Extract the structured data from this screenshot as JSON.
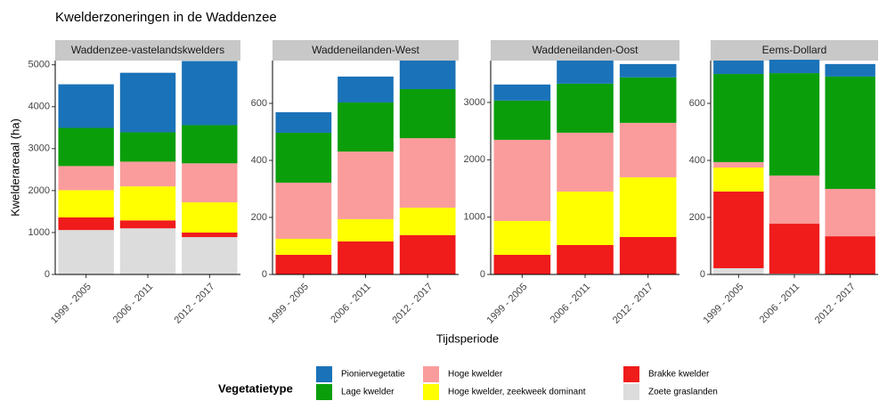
{
  "title": "Kwelderzoneringen in de Waddenzee",
  "x_label": "Tijdsperiode",
  "y_label": "Kwelderareaal (ha)",
  "legend_title": "Vegetatietype",
  "chart_data": [
    {
      "type": "bar",
      "stacked": true,
      "title": "Waddenzee-vastelandskwelders",
      "categories": [
        "1999 - 2005",
        "2006 - 2011",
        "2012 - 2017"
      ],
      "ylim": [
        0,
        5100
      ],
      "yticks": [
        0,
        1000,
        2000,
        3000,
        4000,
        5000
      ],
      "series": [
        {
          "name": "Zoete graslanden",
          "color": "#dcdcdc",
          "values": [
            1060,
            1100,
            890
          ]
        },
        {
          "name": "Brakke kwelder",
          "color": "#f01b1b",
          "values": [
            300,
            190,
            110
          ]
        },
        {
          "name": "Hoge kwelder, zeekweek dominant",
          "color": "#ffff00",
          "values": [
            650,
            810,
            720
          ]
        },
        {
          "name": "Hoge kwelder",
          "color": "#fa9c9c",
          "values": [
            575,
            590,
            930
          ]
        },
        {
          "name": "Lage kwelder",
          "color": "#0b9e0b",
          "values": [
            910,
            700,
            910
          ]
        },
        {
          "name": "Pioniervegetatie",
          "color": "#1a72b8",
          "values": [
            1040,
            1420,
            1530
          ]
        }
      ]
    },
    {
      "type": "bar",
      "stacked": true,
      "title": "Waddeneilanden-West",
      "categories": [
        "1999 - 2005",
        "2006 - 2011",
        "2012 - 2017"
      ],
      "ylim": [
        0,
        750
      ],
      "yticks": [
        0,
        200,
        400,
        600
      ],
      "series": [
        {
          "name": "Zoete graslanden",
          "color": "#dcdcdc",
          "values": [
            0,
            0,
            0
          ]
        },
        {
          "name": "Brakke kwelder",
          "color": "#f01b1b",
          "values": [
            69,
            116,
            138
          ]
        },
        {
          "name": "Hoge kwelder, zeekweek dominant",
          "color": "#ffff00",
          "values": [
            56,
            78,
            96
          ]
        },
        {
          "name": "Hoge kwelder",
          "color": "#fa9c9c",
          "values": [
            197,
            237,
            244
          ]
        },
        {
          "name": "Lage kwelder",
          "color": "#0b9e0b",
          "values": [
            175,
            172,
            172
          ]
        },
        {
          "name": "Pioniervegetatie",
          "color": "#1a72b8",
          "values": [
            72,
            91,
            100
          ]
        }
      ]
    },
    {
      "type": "bar",
      "stacked": true,
      "title": "Waddeneilanden-Oost",
      "categories": [
        "1999 - 2005",
        "2006 - 2011",
        "2012 - 2017"
      ],
      "ylim": [
        0,
        3730
      ],
      "yticks": [
        0,
        1000,
        2000,
        3000
      ],
      "series": [
        {
          "name": "Zoete graslanden",
          "color": "#dcdcdc",
          "values": [
            0,
            0,
            0
          ]
        },
        {
          "name": "Brakke kwelder",
          "color": "#f01b1b",
          "values": [
            342,
            513,
            653
          ]
        },
        {
          "name": "Hoge kwelder, zeekweek dominant",
          "color": "#ffff00",
          "values": [
            591,
            933,
            1042
          ]
        },
        {
          "name": "Hoge kwelder",
          "color": "#fa9c9c",
          "values": [
            1415,
            1027,
            949
          ]
        },
        {
          "name": "Lage kwelder",
          "color": "#0b9e0b",
          "values": [
            685,
            855,
            793
          ]
        },
        {
          "name": "Pioniervegetatie",
          "color": "#1a72b8",
          "values": [
            280,
            402,
            233
          ]
        }
      ]
    },
    {
      "type": "bar",
      "stacked": true,
      "title": "Eems-Dollard",
      "categories": [
        "1999 - 2005",
        "2006 - 2011",
        "2012 - 2017"
      ],
      "ylim": [
        0,
        750
      ],
      "yticks": [
        0,
        200,
        400,
        600
      ],
      "series": [
        {
          "name": "Zoete graslanden",
          "color": "#dcdcdc",
          "values": [
            22,
            3,
            0
          ]
        },
        {
          "name": "Brakke kwelder",
          "color": "#f01b1b",
          "values": [
            269,
            175,
            134
          ]
        },
        {
          "name": "Hoge kwelder, zeekweek dominant",
          "color": "#ffff00",
          "values": [
            84,
            0,
            0
          ]
        },
        {
          "name": "Hoge kwelder",
          "color": "#fa9c9c",
          "values": [
            19,
            169,
            166
          ]
        },
        {
          "name": "Lage kwelder",
          "color": "#0b9e0b",
          "values": [
            309,
            359,
            394
          ]
        },
        {
          "name": "Pioniervegetatie",
          "color": "#1a72b8",
          "values": [
            47,
            47,
            44
          ]
        }
      ]
    }
  ]
}
